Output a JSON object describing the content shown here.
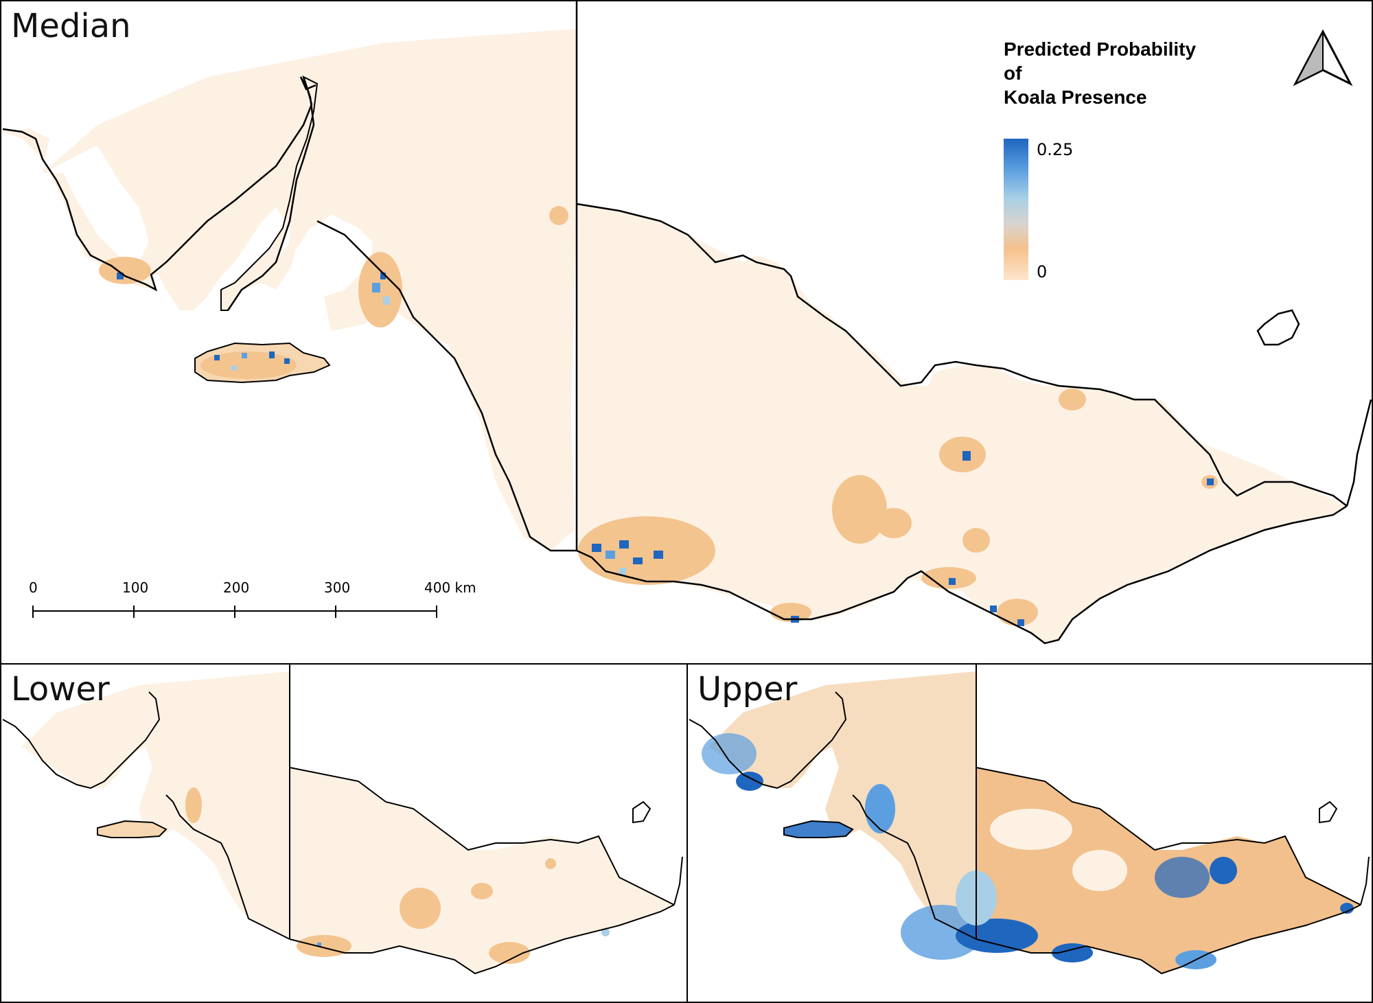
{
  "panels": {
    "median": {
      "title": "Median"
    },
    "lower": {
      "title": "Lower"
    },
    "upper": {
      "title": "Upper"
    }
  },
  "legend": {
    "title_line1": "Predicted Probability",
    "title_line2": "of",
    "title_line3": "Koala Presence",
    "max_label": "0.25",
    "min_label": "0",
    "ramp_colors": [
      "#1f66bf",
      "#5b9fe0",
      "#a8cfe6",
      "#d8d4cf",
      "#f6c18c",
      "#fde6cd"
    ]
  },
  "scale_bar": {
    "labels": [
      "0",
      "100",
      "200",
      "300",
      "400 km"
    ]
  },
  "north_arrow": {
    "icon": "north-arrow-icon"
  },
  "colors": {
    "land_base": "#fdf1e4",
    "low_prob": "#f4c48f",
    "mid_prob": "#a8cfe6",
    "high_prob": "#1f66bf",
    "outline": "#000000"
  }
}
